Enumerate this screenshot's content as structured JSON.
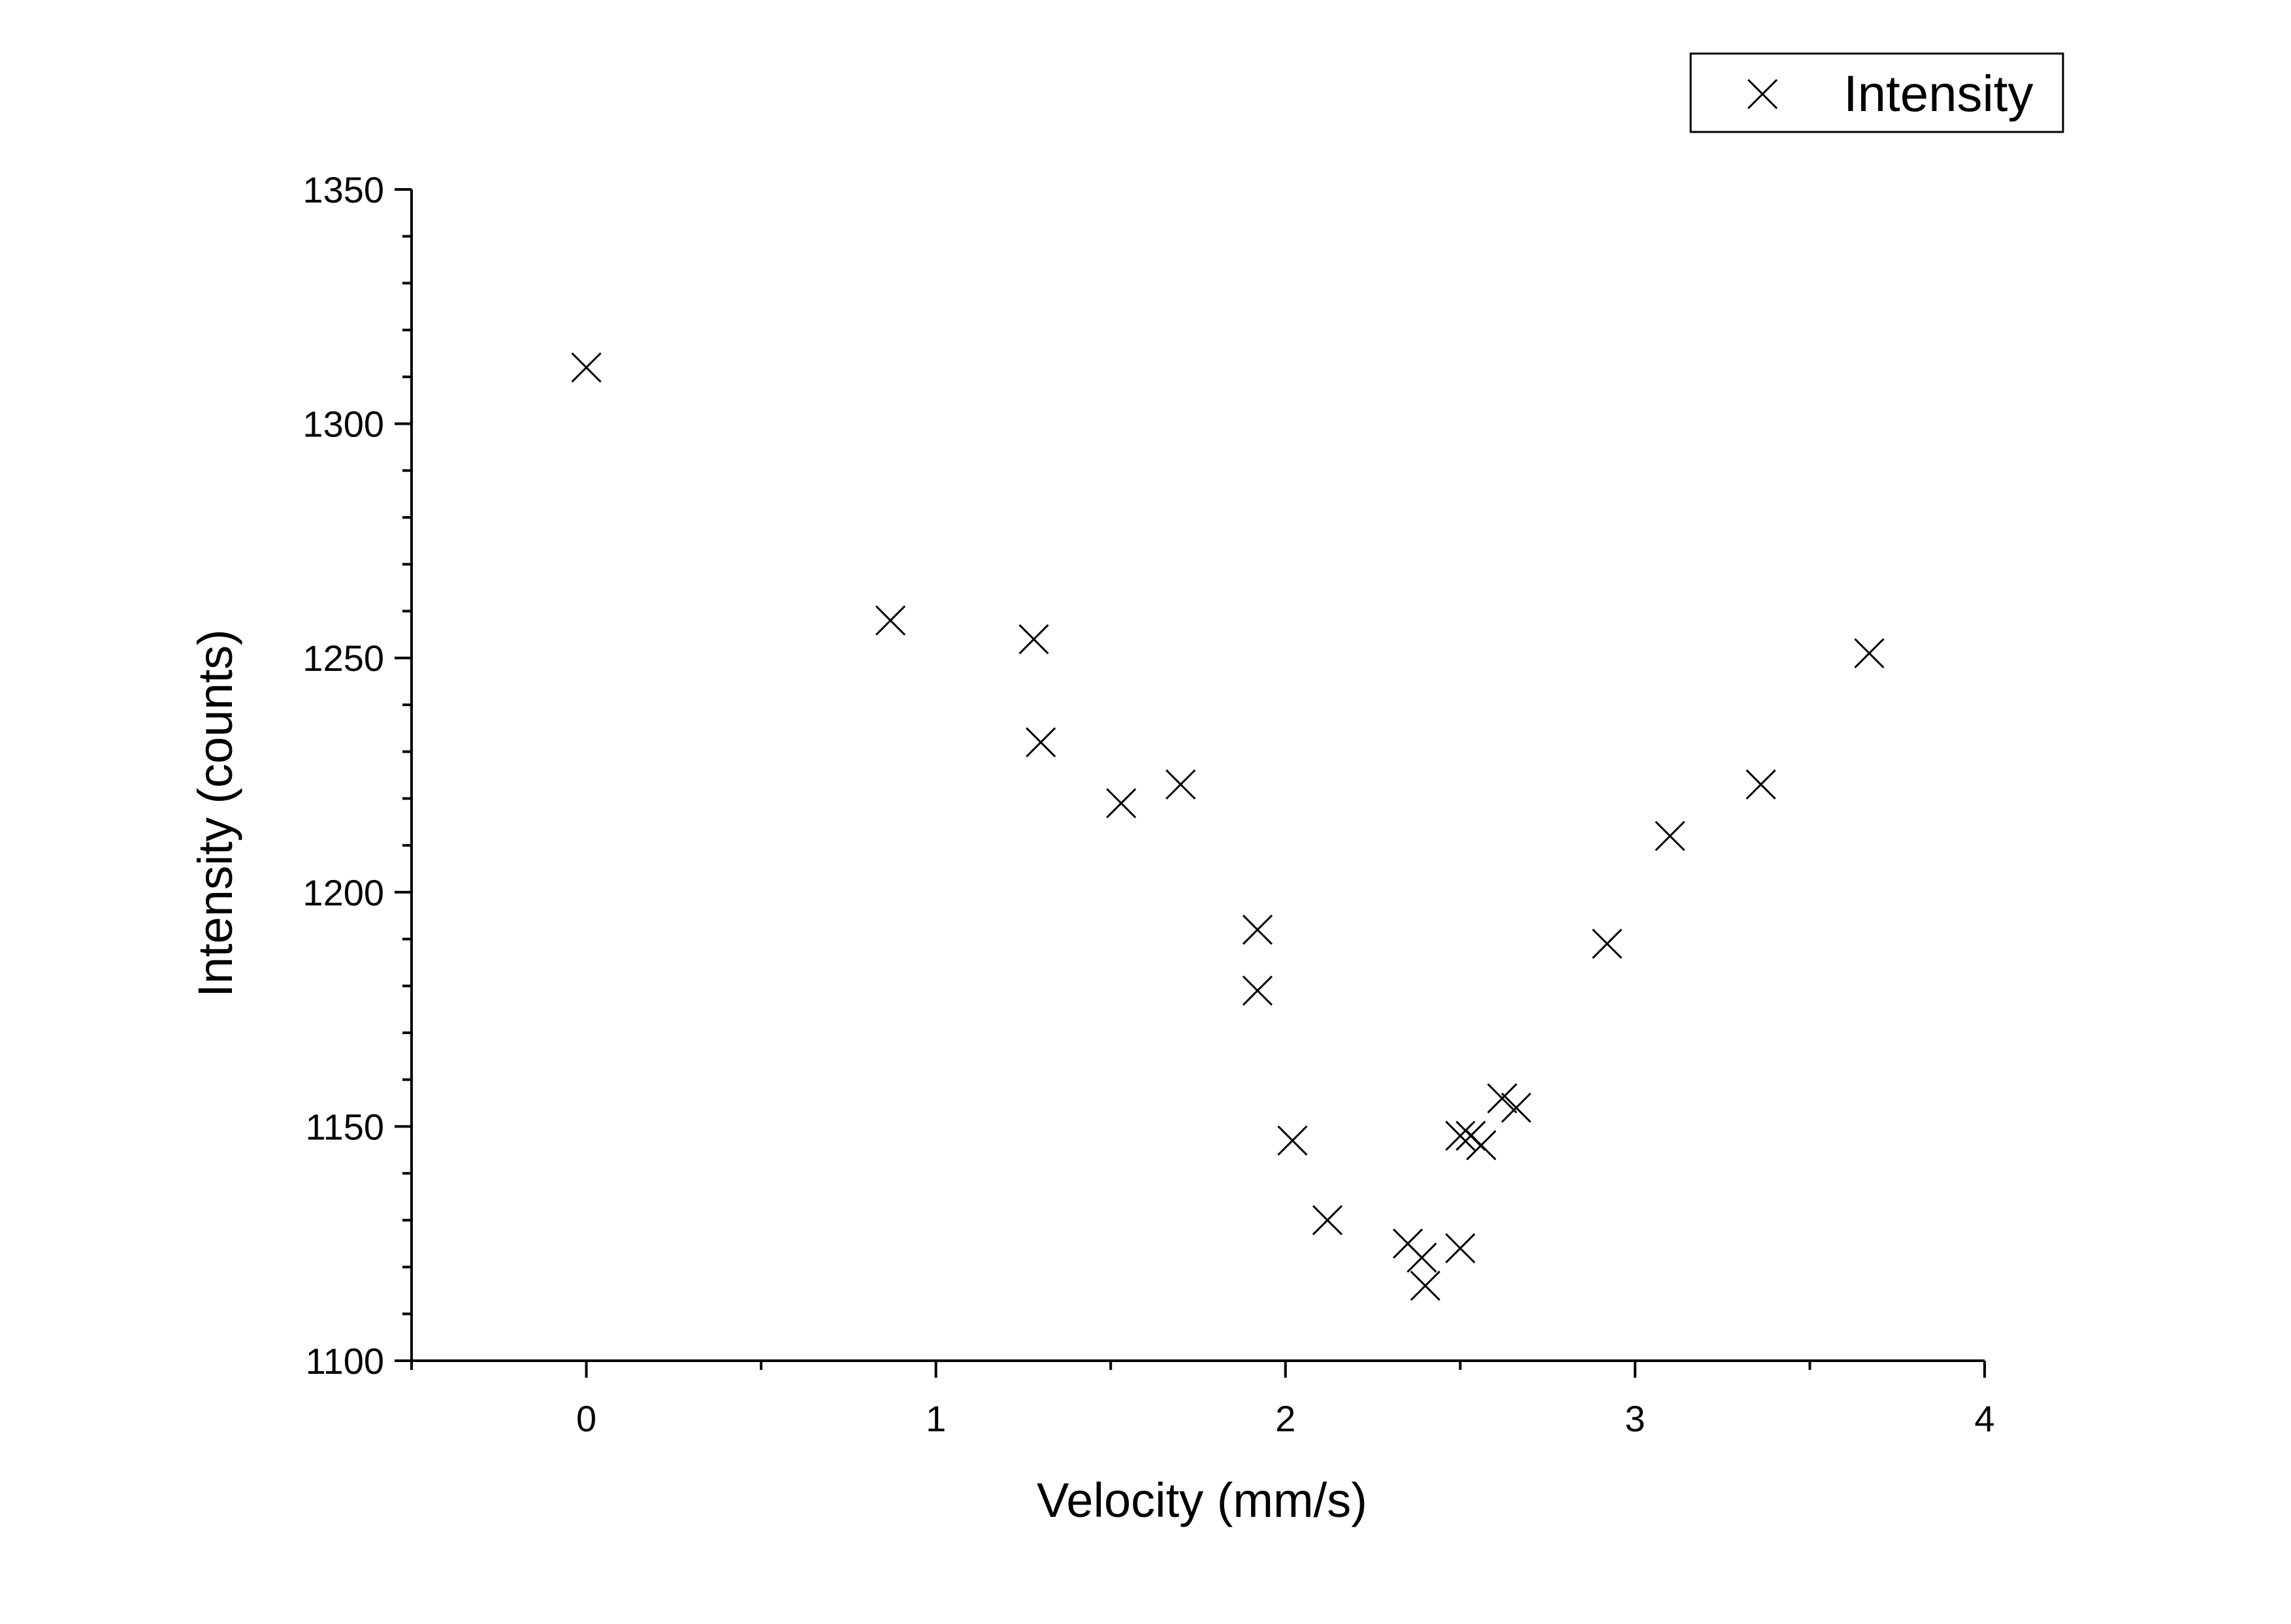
{
  "chart_data": {
    "type": "scatter",
    "xlabel": "Velocity (mm/s)",
    "ylabel": "Intensity (counts)",
    "xlim": [
      -0.5,
      4
    ],
    "ylim": [
      1100,
      1350
    ],
    "x_ticks": [
      0,
      1,
      2,
      3,
      4
    ],
    "y_ticks": [
      1100,
      1150,
      1200,
      1250,
      1300,
      1350
    ],
    "grid": false,
    "legend_position": "top-right",
    "marker": "x",
    "colors": {
      "marker": "#000000",
      "axis": "#000000",
      "background": "#ffffff"
    },
    "series": [
      {
        "name": "Intensity",
        "x": [
          0.0,
          0.87,
          1.28,
          1.3,
          1.53,
          1.7,
          1.92,
          1.92,
          2.02,
          2.12,
          2.35,
          2.39,
          2.4,
          2.5,
          2.5,
          2.53,
          2.56,
          2.62,
          2.66,
          2.92,
          3.1,
          3.36,
          3.67
        ],
        "y": [
          1312,
          1258,
          1254,
          1232,
          1219,
          1223,
          1192,
          1179,
          1147,
          1130,
          1125,
          1122,
          1116,
          1124,
          1148,
          1148,
          1146,
          1156,
          1154,
          1189,
          1212,
          1223,
          1251
        ]
      }
    ]
  }
}
